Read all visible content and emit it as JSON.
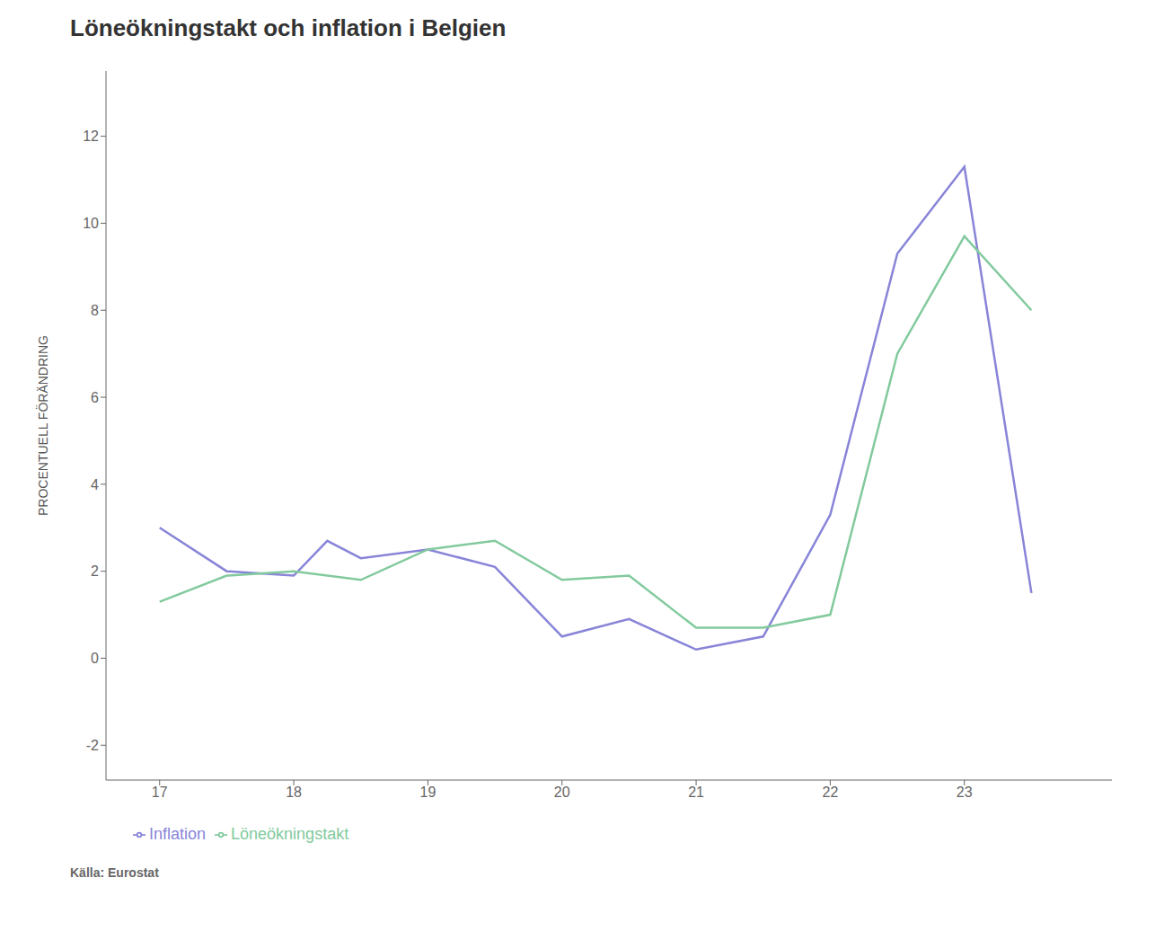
{
  "chart_data": {
    "type": "line",
    "title": "Löneökningstakt och inflation i Belgien",
    "ylabel": "PROCENTUELL FÖRÄNDRING",
    "source": "Källa: Eurostat",
    "series": [
      {
        "name": "Inflation",
        "color": "#8884d8",
        "x": [
          17,
          17.5,
          18,
          18.25,
          18.5,
          19,
          19.5,
          20,
          20.5,
          21,
          21.5,
          22,
          22.5,
          23,
          23.5
        ],
        "values": [
          3.0,
          2.0,
          1.9,
          2.7,
          2.3,
          2.5,
          2.1,
          0.5,
          0.9,
          0.2,
          0.5,
          3.3,
          9.3,
          11.3,
          1.5
        ]
      },
      {
        "name": "Löneökningstakt",
        "color": "#82ca9d",
        "x": [
          17,
          17.5,
          18,
          18.5,
          19,
          19.5,
          20,
          20.5,
          21,
          21.5,
          22,
          22.5,
          23,
          23.5
        ],
        "values": [
          1.3,
          1.9,
          2.0,
          1.8,
          2.5,
          2.7,
          1.8,
          1.9,
          0.7,
          0.7,
          1.0,
          7.0,
          9.7,
          8.0
        ]
      }
    ],
    "xlim": [
      16.6,
      24.1
    ],
    "ylim": [
      -2.8,
      13.5
    ],
    "xticks": [
      17,
      18,
      19,
      20,
      21,
      22,
      23
    ],
    "yticks": [
      -2,
      0,
      2,
      4,
      6,
      8,
      10,
      12
    ],
    "grid": false,
    "legend": "bottom"
  }
}
